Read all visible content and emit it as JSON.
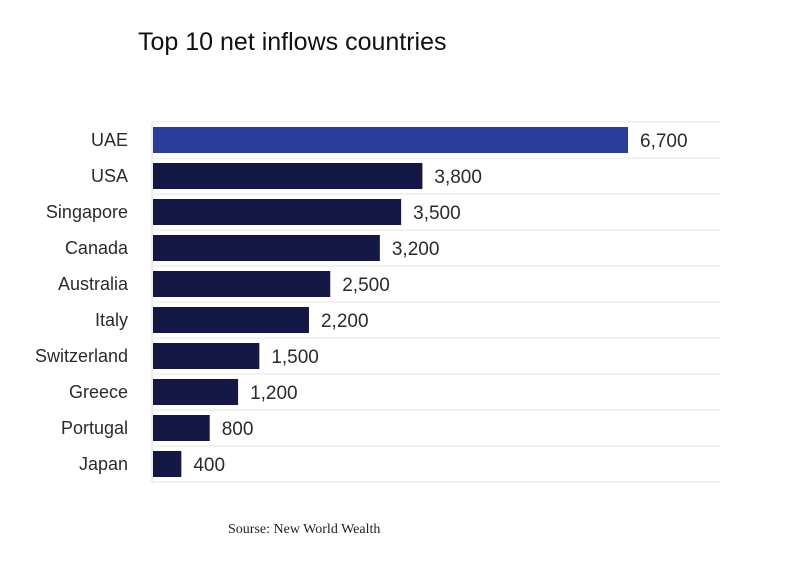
{
  "chart_data": {
    "type": "bar",
    "orientation": "horizontal",
    "title": "Top 10 net inflows countries",
    "categories": [
      "UAE",
      "USA",
      "Singapore",
      "Canada",
      "Australia",
      "Italy",
      "Switzerland",
      "Greece",
      "Portugal",
      "Japan"
    ],
    "values": [
      6700,
      3800,
      3500,
      3200,
      2500,
      2200,
      1500,
      1200,
      800,
      400
    ],
    "value_labels": [
      "6,700",
      "3,800",
      "3,500",
      "3,200",
      "2,500",
      "2,200",
      "1,500",
      "1,200",
      "800",
      "400"
    ],
    "xlabel": "",
    "ylabel": "",
    "xlim": [
      0,
      6700
    ],
    "highlight_index": 0,
    "colors": {
      "highlight": "#2a3d9c",
      "default": "#141845",
      "grid": "#e6e6e6"
    },
    "source": "Sourse: New World Wealth"
  }
}
